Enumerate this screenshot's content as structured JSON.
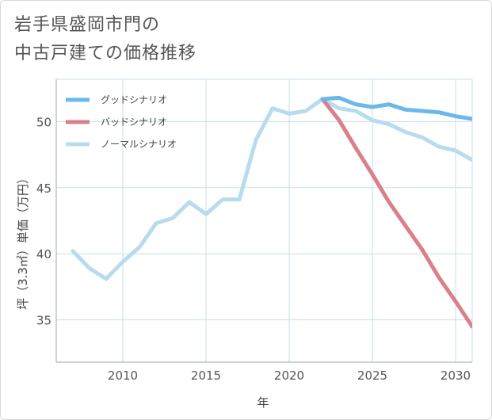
{
  "title": {
    "line1": "岩手県盛岡市門の",
    "line2": "中古戸建ての価格推移"
  },
  "colors": {
    "good": "#6ab8ec",
    "bad": "#d9808a",
    "normal": "#b8dced",
    "grid": "#c9dfe9",
    "frame": "#9aa8b0"
  },
  "chart_data": {
    "type": "line",
    "title": "岩手県盛岡市門の中古戸建ての価格推移",
    "xlabel": "年",
    "ylabel": "坪（3.3㎡）単価（万円）",
    "xlim": [
      2006,
      2031
    ],
    "ylim": [
      31.8,
      53.2
    ],
    "xticks": [
      2010,
      2015,
      2020,
      2025,
      2030
    ],
    "yticks": [
      35,
      40,
      45,
      50
    ],
    "legend_position": "top-left",
    "series": [
      {
        "name": "グッドシナリオ",
        "key": "good",
        "x": [
          2022,
          2023,
          2024,
          2025,
          2026,
          2027,
          2028,
          2029,
          2030,
          2031
        ],
        "y": [
          51.7,
          51.8,
          51.3,
          51.1,
          51.3,
          50.9,
          50.8,
          50.7,
          50.4,
          50.2
        ]
      },
      {
        "name": "バッドシナリオ",
        "key": "bad",
        "x": [
          2022,
          2023,
          2024,
          2025,
          2026,
          2027,
          2028,
          2029,
          2030,
          2031
        ],
        "y": [
          51.7,
          50.1,
          48.0,
          46.0,
          43.9,
          42.1,
          40.3,
          38.2,
          36.4,
          34.5
        ]
      },
      {
        "name": "ノーマルシナリオ",
        "key": "normal",
        "x": [
          2007,
          2008,
          2009,
          2010,
          2011,
          2012,
          2013,
          2014,
          2015,
          2016,
          2017,
          2018,
          2019,
          2020,
          2021,
          2022,
          2023,
          2024,
          2025,
          2026,
          2027,
          2028,
          2029,
          2030,
          2031
        ],
        "y": [
          40.2,
          38.9,
          38.1,
          39.4,
          40.5,
          42.3,
          42.7,
          43.9,
          43.0,
          44.1,
          44.1,
          48.6,
          51.0,
          50.6,
          50.8,
          51.7,
          51.0,
          50.8,
          50.1,
          49.8,
          49.2,
          48.8,
          48.1,
          47.8,
          47.1
        ]
      }
    ]
  }
}
